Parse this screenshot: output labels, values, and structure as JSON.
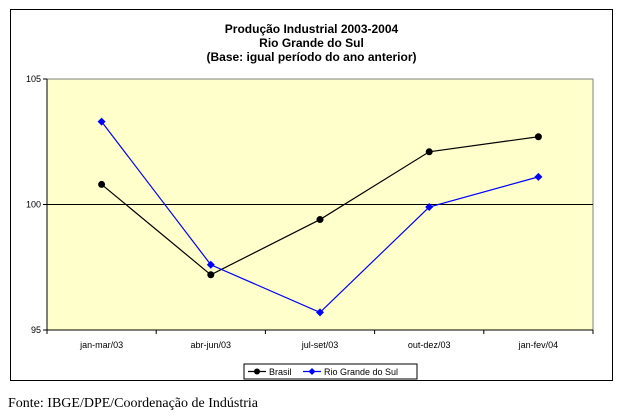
{
  "chart_data": {
    "type": "line",
    "title": [
      "Produção Industrial 2003-2004",
      "Rio Grande do Sul",
      "(Base: igual período do ano anterior)"
    ],
    "categories": [
      "jan-mar/03",
      "abr-jun/03",
      "jul-set/03",
      "out-dez/03",
      "jan-fev/04"
    ],
    "ylim": [
      95,
      105
    ],
    "yticks": [
      "95",
      "100",
      "105"
    ],
    "reference_line": 100,
    "grid": false,
    "legend_position": "bottom",
    "series": [
      {
        "name": "Brasil",
        "values": [
          100.8,
          97.2,
          99.4,
          102.1,
          102.7
        ],
        "color": "#000000",
        "marker": "circle"
      },
      {
        "name": "Rio Grande do Sul",
        "values": [
          103.3,
          97.6,
          95.7,
          99.9,
          101.1
        ],
        "color": "#0000ff",
        "marker": "diamond"
      }
    ],
    "plot_background": "#ffffcc"
  },
  "source_note": "Fonte: IBGE/DPE/Coordenação de Indústria"
}
